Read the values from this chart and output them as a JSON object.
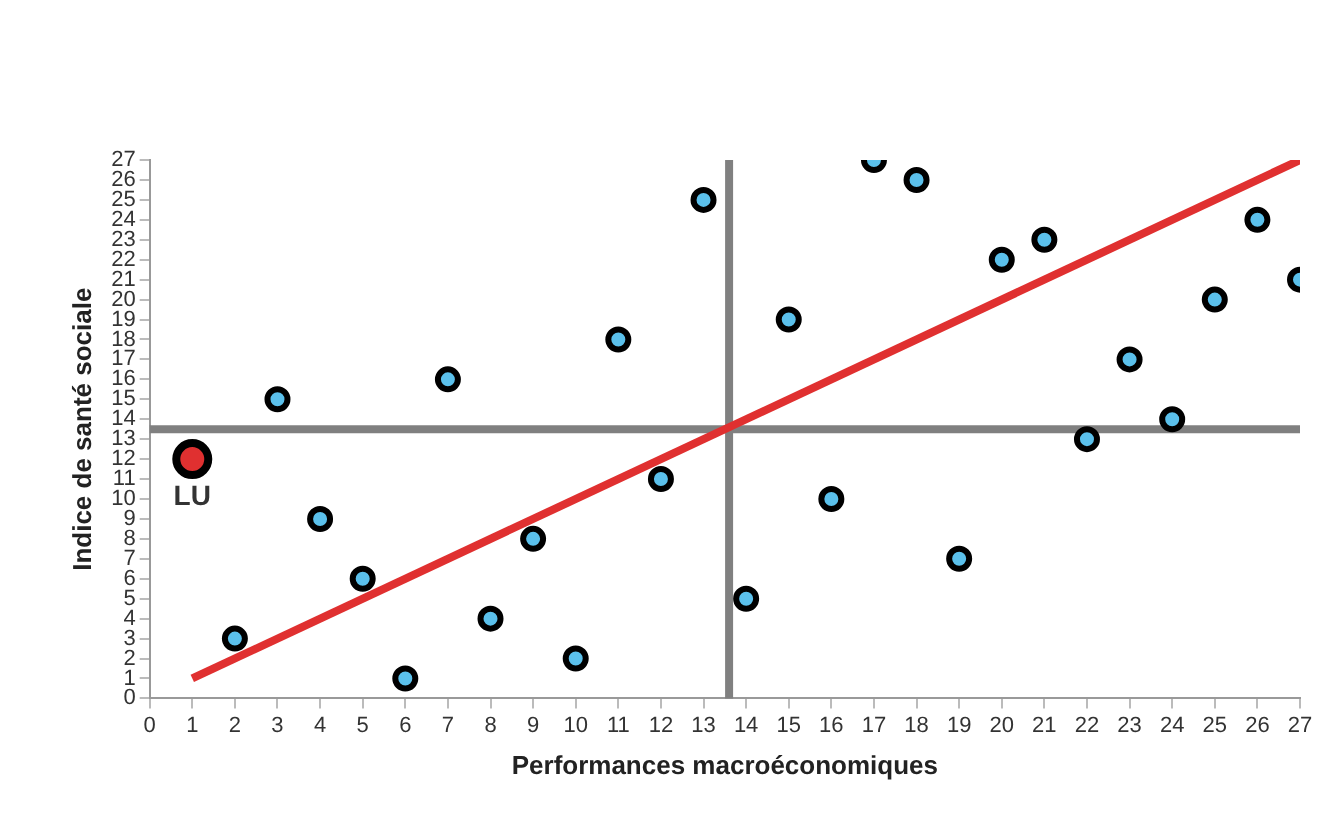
{
  "chart_data": {
    "type": "scatter",
    "xlabel": "Performances macroéconomiques",
    "ylabel": "Indice de santé sociale",
    "xlim": [
      0,
      27
    ],
    "xticks": [
      0,
      1,
      2,
      3,
      4,
      5,
      6,
      7,
      8,
      9,
      10,
      11,
      12,
      13,
      14,
      15,
      16,
      17,
      18,
      19,
      20,
      21,
      22,
      23,
      24,
      25,
      26,
      27
    ],
    "ylim": [
      0,
      27
    ],
    "yticks": [
      0,
      1,
      2,
      3,
      4,
      5,
      6,
      7,
      8,
      9,
      10,
      11,
      12,
      13,
      14,
      15,
      16,
      17,
      18,
      19,
      20,
      21,
      22,
      23,
      24,
      25,
      26,
      27
    ],
    "grid": false,
    "legend": false,
    "marker": "circle",
    "series": [
      {
        "color": "#5bc0eb",
        "x": [
          2,
          3,
          4,
          5,
          6,
          7,
          8,
          9,
          10,
          11,
          12,
          13,
          14,
          15,
          16,
          17,
          18,
          19,
          20,
          21,
          22,
          23,
          24,
          25,
          26,
          27
        ],
        "values": [
          3,
          15,
          9,
          6,
          1,
          16,
          4,
          8,
          2,
          18,
          11,
          25,
          5,
          19,
          10,
          27,
          26,
          7,
          22,
          23,
          13,
          17,
          14,
          20,
          24,
          21
        ]
      },
      {
        "color": "#e03030",
        "x": [
          1
        ],
        "values": [
          12
        ]
      },
      {
        "type": "line",
        "color": "#e03030",
        "x": [
          1,
          27
        ],
        "values": [
          1,
          27
        ],
        "marker": "none"
      }
    ],
    "ref_lines": [
      {
        "axis": "x",
        "value": 13.6,
        "color": "#808080"
      },
      {
        "axis": "y",
        "value": 13.5,
        "color": "#808080"
      }
    ],
    "annotations": [
      {
        "text": "LU",
        "x": 1,
        "y": 12
      }
    ]
  }
}
